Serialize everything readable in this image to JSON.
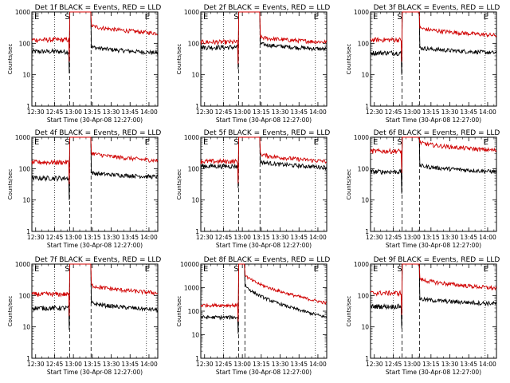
{
  "figure": {
    "background": "#ffffff",
    "colors": {
      "events": "#000000",
      "lld": "#d00000",
      "axes": "#000000"
    }
  },
  "chart_data": [
    {
      "type": "line",
      "title": "Det 1f BLACK = Events, RED = LLD",
      "xlabel": "Start Time (30-Apr-08 12:27:00)",
      "ylabel": "Counts/sec",
      "x_ticks": [
        "12:30",
        "12:45",
        "13:00",
        "13:15",
        "13:30",
        "13:45",
        "14:00"
      ],
      "x_range_min": [
        27,
        127
      ],
      "y_scale": "log",
      "ylim": [
        1,
        1000
      ],
      "y_ticks": [
        "1",
        "10",
        "100",
        "1000"
      ],
      "markers": [
        "S",
        "E"
      ],
      "series": [
        {
          "name": "Events",
          "color": "#000000",
          "before": 55,
          "gap_from": 57,
          "gap_to": 69,
          "after_start": 80,
          "after_end": 50
        },
        {
          "name": "LLD",
          "color": "#d00000",
          "before": 130,
          "gap_from": 57,
          "gap_to": 69,
          "after_start": 380,
          "after_end": 210
        }
      ]
    },
    {
      "type": "line",
      "title": "Det 2f BLACK = Events, RED = LLD",
      "xlabel": "Start Time (30-Apr-08 12:27:00)",
      "ylabel": "Counts/sec",
      "x_ticks": [
        "12:30",
        "12:45",
        "13:00",
        "13:15",
        "13:30",
        "13:45",
        "14:00"
      ],
      "x_range_min": [
        27,
        127
      ],
      "y_scale": "log",
      "ylim": [
        1,
        1000
      ],
      "y_ticks": [
        "1",
        "10",
        "100",
        "1000"
      ],
      "markers": [
        "S",
        "E"
      ],
      "series": [
        {
          "name": "Events",
          "color": "#000000",
          "before": 75,
          "gap_from": 57,
          "gap_to": 69,
          "after_start": 100,
          "after_end": 65
        },
        {
          "name": "LLD",
          "color": "#d00000",
          "before": 110,
          "gap_from": 57,
          "gap_to": 69,
          "after_start": 160,
          "after_end": 110
        }
      ]
    },
    {
      "type": "line",
      "title": "Det 3f BLACK = Events, RED = LLD",
      "xlabel": "Start Time (30-Apr-08 12:27:00)",
      "ylabel": "Counts/sec",
      "x_ticks": [
        "12:30",
        "12:45",
        "13:00",
        "13:15",
        "13:30",
        "13:45",
        "14:00"
      ],
      "x_range_min": [
        27,
        127
      ],
      "y_scale": "log",
      "ylim": [
        1,
        1000
      ],
      "y_ticks": [
        "1",
        "10",
        "100",
        "1000"
      ],
      "markers": [
        "S",
        "E"
      ],
      "series": [
        {
          "name": "Events",
          "color": "#000000",
          "before": 50,
          "gap_from": 52,
          "gap_to": 61,
          "after_start": 75,
          "after_end": 50
        },
        {
          "name": "LLD",
          "color": "#d00000",
          "before": 130,
          "gap_from": 52,
          "gap_to": 61,
          "after_start": 320,
          "after_end": 180
        }
      ]
    },
    {
      "type": "line",
      "title": "Det 4f BLACK = Events, RED = LLD",
      "xlabel": "Start Time (30-Apr-08 12:27:00)",
      "ylabel": "Counts/sec",
      "x_ticks": [
        "12:30",
        "12:45",
        "13:00",
        "13:15",
        "13:30",
        "13:45",
        "14:00"
      ],
      "x_range_min": [
        27,
        127
      ],
      "y_scale": "log",
      "ylim": [
        1,
        1000
      ],
      "y_ticks": [
        "1",
        "10",
        "100",
        "1000"
      ],
      "markers": [
        "S",
        "E"
      ],
      "series": [
        {
          "name": "Events",
          "color": "#000000",
          "before": 50,
          "gap_from": 57,
          "gap_to": 69,
          "after_start": 75,
          "after_end": 55
        },
        {
          "name": "LLD",
          "color": "#d00000",
          "before": 160,
          "gap_from": 57,
          "gap_to": 69,
          "after_start": 330,
          "after_end": 180
        }
      ]
    },
    {
      "type": "line",
      "title": "Det 5f BLACK = Events, RED = LLD",
      "xlabel": "Start Time (30-Apr-08 12:27:00)",
      "ylabel": "Counts/sec",
      "x_ticks": [
        "12:30",
        "12:45",
        "13:00",
        "13:15",
        "13:30",
        "13:45",
        "14:00"
      ],
      "x_range_min": [
        27,
        127
      ],
      "y_scale": "log",
      "ylim": [
        1,
        1000
      ],
      "y_ticks": [
        "1",
        "10",
        "100",
        "1000"
      ],
      "markers": [
        "S",
        "E"
      ],
      "series": [
        {
          "name": "Events",
          "color": "#000000",
          "before": 120,
          "gap_from": 57,
          "gap_to": 69,
          "after_start": 170,
          "after_end": 110
        },
        {
          "name": "LLD",
          "color": "#d00000",
          "before": 170,
          "gap_from": 57,
          "gap_to": 69,
          "after_start": 300,
          "after_end": 170
        }
      ]
    },
    {
      "type": "line",
      "title": "Det 6f BLACK = Events, RED = LLD",
      "xlabel": "Start Time (30-Apr-08 12:27:00)",
      "ylabel": "Counts/sec",
      "x_ticks": [
        "12:30",
        "12:45",
        "13:00",
        "13:15",
        "13:30",
        "13:45",
        "14:00"
      ],
      "x_range_min": [
        27,
        127
      ],
      "y_scale": "log",
      "ylim": [
        1,
        1000
      ],
      "y_ticks": [
        "1",
        "10",
        "100",
        "1000"
      ],
      "markers": [
        "S",
        "E"
      ],
      "series": [
        {
          "name": "Events",
          "color": "#000000",
          "before": 80,
          "gap_from": 52,
          "gap_to": 61,
          "after_start": 130,
          "after_end": 80
        },
        {
          "name": "LLD",
          "color": "#d00000",
          "before": 360,
          "gap_from": 52,
          "gap_to": 61,
          "after_start": 700,
          "after_end": 380
        }
      ]
    },
    {
      "type": "line",
      "title": "Det 7f BLACK = Events, RED = LLD",
      "xlabel": "Start Time (30-Apr-08 12:27:00)",
      "ylabel": "Counts/sec",
      "x_ticks": [
        "12:30",
        "12:45",
        "13:00",
        "13:15",
        "13:30",
        "13:45",
        "14:00"
      ],
      "x_range_min": [
        27,
        127
      ],
      "y_scale": "log",
      "ylim": [
        1,
        1000
      ],
      "y_ticks": [
        "1",
        "10",
        "100",
        "1000"
      ],
      "markers": [
        "S",
        "E"
      ],
      "series": [
        {
          "name": "Events",
          "color": "#000000",
          "before": 40,
          "gap_from": 57,
          "gap_to": 69,
          "after_start": 60,
          "after_end": 35
        },
        {
          "name": "LLD",
          "color": "#d00000",
          "before": 110,
          "gap_from": 57,
          "gap_to": 69,
          "after_start": 220,
          "after_end": 120
        }
      ]
    },
    {
      "type": "line",
      "title": "Det 8f BLACK = Events, RED = LLD",
      "xlabel": "Start Time (30-Apr-08 12:27:00)",
      "ylabel": "Counts/sec",
      "x_ticks": [
        "12:30",
        "12:45",
        "13:00",
        "13:15",
        "13:30",
        "13:45",
        "14:00"
      ],
      "x_range_min": [
        27,
        127
      ],
      "y_scale": "log",
      "ylim": [
        1,
        10000
      ],
      "y_ticks": [
        "1",
        "10",
        "100",
        "1000",
        "10000"
      ],
      "markers": [
        "S",
        "E"
      ],
      "series": [
        {
          "name": "Events",
          "color": "#000000",
          "before": 55,
          "gap_from": 57,
          "gap_to": 57,
          "after_start": 1500,
          "after_end": 55
        },
        {
          "name": "LLD",
          "color": "#d00000",
          "before": 180,
          "gap_from": 57,
          "gap_to": 57,
          "after_start": 4000,
          "after_end": 220
        }
      ]
    },
    {
      "type": "line",
      "title": "Det 9f BLACK = Events, RED = LLD",
      "xlabel": "Start Time (30-Apr-08 12:27:00)",
      "ylabel": "Counts/sec",
      "x_ticks": [
        "12:30",
        "12:45",
        "13:00",
        "13:15",
        "13:30",
        "13:45",
        "14:00"
      ],
      "x_range_min": [
        27,
        127
      ],
      "y_scale": "log",
      "ylim": [
        1,
        1000
      ],
      "y_ticks": [
        "1",
        "10",
        "100",
        "1000"
      ],
      "markers": [
        "S",
        "E"
      ],
      "series": [
        {
          "name": "Events",
          "color": "#000000",
          "before": 45,
          "gap_from": 52,
          "gap_to": 61,
          "after_start": 80,
          "after_end": 55
        },
        {
          "name": "LLD",
          "color": "#d00000",
          "before": 120,
          "gap_from": 52,
          "gap_to": 61,
          "after_start": 350,
          "after_end": 170
        }
      ]
    }
  ]
}
